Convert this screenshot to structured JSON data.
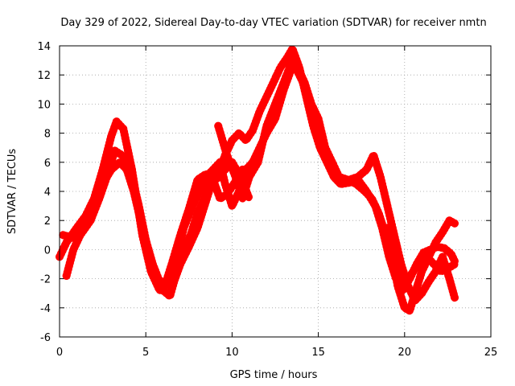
{
  "chart_data": {
    "type": "line",
    "title": "Day 329 of 2022, Sidereal Day-to-day VTEC variation (SDTVAR) for receiver nmtn",
    "xlabel": "GPS time / hours",
    "ylabel": "SDTVAR / TECUs",
    "xlim": [
      0,
      25
    ],
    "ylim": [
      -6,
      14
    ],
    "xticks": [
      "0",
      "5",
      "10",
      "15",
      "20",
      "25"
    ],
    "yticks": [
      "-6",
      "-4",
      "-2",
      "0",
      "2",
      "4",
      "6",
      "8",
      "10",
      "12",
      "14"
    ],
    "grid": true,
    "line_color": "#ff0000",
    "series": [
      {
        "name": "track-1",
        "x": [
          0.0,
          0.4,
          1.0,
          1.5,
          2.0,
          2.5,
          3.0,
          3.3,
          3.7,
          4.2,
          4.8,
          5.3,
          5.8,
          6.1,
          6.5,
          7.0,
          7.5,
          8.0,
          8.5,
          9.0,
          9.4
        ],
        "y": [
          -0.5,
          0.5,
          1.5,
          2.3,
          3.5,
          5.5,
          7.8,
          8.8,
          8.3,
          5.5,
          1.0,
          -1.5,
          -2.8,
          -2.5,
          -1.0,
          1.0,
          2.8,
          4.8,
          5.2,
          4.9,
          5.0
        ]
      },
      {
        "name": "track-2",
        "x": [
          0.4,
          0.8,
          1.2,
          1.8,
          2.3,
          2.8,
          3.2,
          3.6,
          4.0,
          4.6,
          5.2,
          5.7,
          6.2,
          6.6,
          7.0,
          7.5,
          8.0,
          8.4,
          8.8,
          9.2,
          9.6,
          10.0,
          10.5,
          11.0
        ],
        "y": [
          -1.8,
          0.0,
          1.0,
          2.0,
          3.5,
          5.2,
          6.8,
          6.5,
          6.0,
          3.0,
          -0.5,
          -2.0,
          -2.5,
          -2.3,
          -1.0,
          0.2,
          1.5,
          3.0,
          4.5,
          5.0,
          5.5,
          6.0,
          5.0,
          3.5
        ]
      },
      {
        "name": "track-3",
        "x": [
          0.2,
          0.8,
          1.4,
          2.0,
          2.5,
          3.0,
          3.5,
          3.9,
          4.3,
          4.8,
          5.4,
          6.0,
          6.4,
          6.8,
          7.2,
          7.6,
          8.0,
          8.4,
          8.9,
          9.3,
          9.7,
          10.1,
          10.6,
          11.0
        ],
        "y": [
          1.0,
          0.8,
          1.5,
          3.0,
          4.5,
          5.5,
          6.0,
          5.5,
          4.0,
          1.5,
          -1.0,
          -2.8,
          -3.2,
          -1.5,
          0.0,
          1.0,
          2.5,
          3.5,
          4.8,
          3.5,
          3.8,
          4.5,
          5.5,
          5.0
        ]
      },
      {
        "name": "track-4",
        "x": [
          6.8,
          7.2,
          7.7,
          8.2,
          8.7,
          9.2,
          9.6,
          10.0,
          10.4,
          10.8,
          11.2,
          11.6,
          12.0,
          12.4,
          12.8,
          13.2,
          13.5,
          13.9,
          14.3,
          14.7,
          15.1,
          15.5,
          15.9,
          16.3,
          16.8,
          17.3,
          17.8,
          18.3,
          18.7,
          19.1,
          19.5,
          19.9,
          20.3,
          20.7,
          21.1,
          21.5,
          21.9,
          22.3,
          22.7,
          22.9
        ],
        "y": [
          -0.5,
          1.5,
          3.0,
          4.2,
          5.0,
          5.2,
          6.5,
          7.5,
          8.0,
          7.5,
          8.2,
          9.5,
          10.5,
          11.5,
          12.5,
          13.2,
          13.8,
          12.5,
          10.5,
          8.5,
          7.0,
          6.0,
          5.0,
          4.5,
          4.6,
          4.8,
          4.0,
          3.0,
          1.5,
          -0.5,
          -2.0,
          -2.8,
          -2.0,
          -1.0,
          -0.2,
          0.0,
          0.2,
          0.1,
          -0.3,
          -0.8
        ]
      },
      {
        "name": "track-5",
        "x": [
          8.5,
          8.9,
          9.3,
          9.6,
          10.0,
          10.4,
          10.8,
          11.2,
          11.6,
          12.0,
          12.5,
          13.0,
          13.4,
          13.8,
          14.2,
          14.6,
          15.0,
          15.4,
          15.8,
          16.2,
          16.7,
          17.2,
          17.7,
          18.1,
          18.5,
          18.9,
          19.3,
          19.7,
          20.1,
          20.5,
          20.9,
          21.3,
          21.7,
          22.1,
          22.5,
          22.9
        ],
        "y": [
          5.0,
          5.5,
          6.0,
          4.5,
          3.0,
          4.0,
          5.5,
          6.0,
          7.0,
          8.0,
          9.0,
          11.0,
          12.3,
          12.5,
          11.5,
          10.0,
          9.0,
          7.0,
          6.0,
          5.0,
          4.8,
          4.5,
          4.0,
          3.5,
          2.5,
          1.0,
          -0.5,
          -1.8,
          -2.2,
          -1.5,
          -0.8,
          -0.5,
          -1.0,
          -1.5,
          -1.3,
          -1.0
        ]
      },
      {
        "name": "track-6",
        "x": [
          9.2,
          9.7,
          10.2,
          10.6,
          11.0,
          11.5,
          12.0,
          12.5,
          13.0,
          13.5,
          13.9,
          14.3,
          14.7,
          15.1,
          15.5,
          15.9,
          16.3,
          16.8,
          17.3,
          17.8,
          18.2,
          18.6,
          19.0,
          19.4,
          19.8,
          20.2,
          20.6,
          21.0,
          21.4,
          21.8,
          22.2,
          22.6,
          22.9
        ],
        "y": [
          8.5,
          6.5,
          5.0,
          3.5,
          5.0,
          6.0,
          8.5,
          10.0,
          11.5,
          13.0,
          12.0,
          11.0,
          9.5,
          8.0,
          6.5,
          5.0,
          4.5,
          4.8,
          5.0,
          5.5,
          6.5,
          5.0,
          3.0,
          1.0,
          -1.0,
          -2.5,
          -3.5,
          -3.0,
          -2.2,
          -1.5,
          -0.5,
          -2.0,
          -3.3
        ]
      },
      {
        "name": "track-7",
        "x": [
          19.0,
          19.3,
          19.6,
          20.0,
          20.3,
          20.6,
          21.0,
          21.4,
          21.8,
          22.2,
          22.6,
          22.9
        ],
        "y": [
          1.5,
          -0.5,
          -2.5,
          -4.0,
          -4.2,
          -3.0,
          -1.5,
          -0.5,
          0.5,
          1.2,
          2.0,
          1.8
        ]
      }
    ]
  }
}
